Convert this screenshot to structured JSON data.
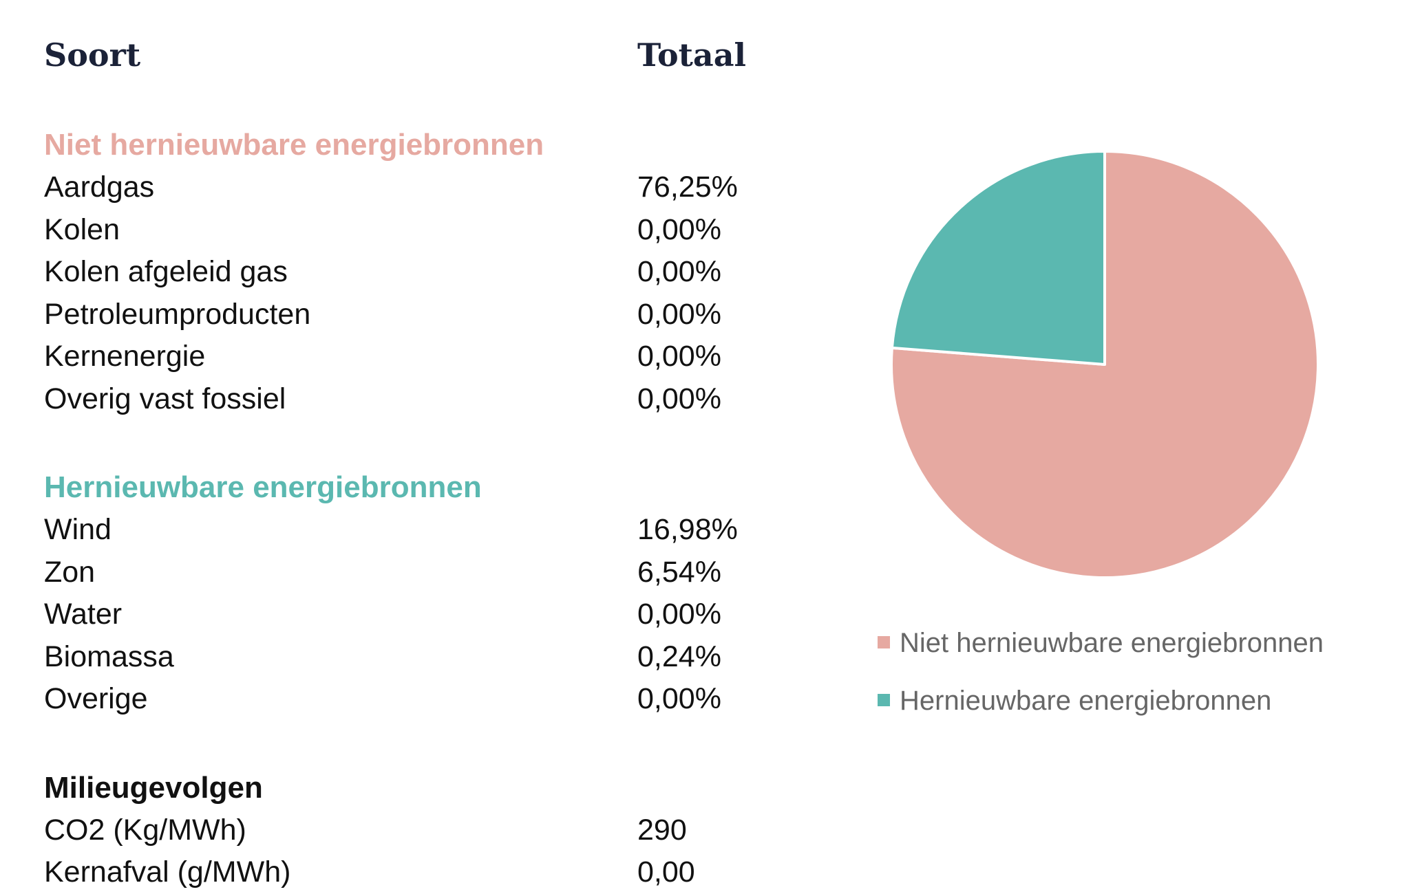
{
  "header": {
    "soort": "Soort",
    "totaal": "Totaal"
  },
  "colors": {
    "niet": "#e6a9a1",
    "hernieuwbaar": "#5bb8b0",
    "header": "#1b2238"
  },
  "groups": {
    "niet": {
      "title": "Niet hernieuwbare energiebronnen",
      "rows": [
        {
          "label": "Aardgas",
          "value": "76,25%"
        },
        {
          "label": "Kolen",
          "value": "0,00%"
        },
        {
          "label": "Kolen afgeleid gas",
          "value": "0,00%"
        },
        {
          "label": "Petroleumproducten",
          "value": "0,00%"
        },
        {
          "label": "Kernenergie",
          "value": "0,00%"
        },
        {
          "label": "Overig vast fossiel",
          "value": "0,00%"
        }
      ]
    },
    "hern": {
      "title": "Hernieuwbare energiebronnen",
      "rows": [
        {
          "label": "Wind",
          "value": "16,98%"
        },
        {
          "label": "Zon",
          "value": "6,54%"
        },
        {
          "label": "Water",
          "value": "0,00%"
        },
        {
          "label": "Biomassa",
          "value": "0,24%"
        },
        {
          "label": "Overige",
          "value": "0,00%"
        }
      ]
    },
    "milieu": {
      "title": "Milieugevolgen",
      "rows": [
        {
          "label": "CO2 (Kg/MWh)",
          "value": "290"
        },
        {
          "label": "Kernafval (g/MWh)",
          "value": "0,00"
        }
      ]
    }
  },
  "chart_data": {
    "type": "pie",
    "categories": [
      "Niet hernieuwbare energiebronnen",
      "Hernieuwbare energiebronnen"
    ],
    "values": [
      76.25,
      23.76
    ],
    "colors": [
      "#e6a9a1",
      "#5bb8b0"
    ],
    "legend": [
      "Niet hernieuwbare energiebronnen",
      "Hernieuwbare energiebronnen"
    ],
    "legend_position": "bottom"
  }
}
